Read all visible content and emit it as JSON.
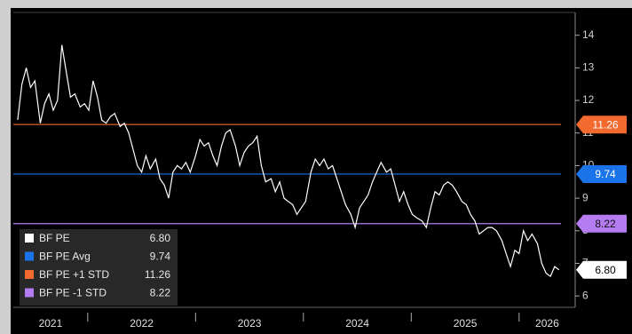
{
  "chart_data": {
    "type": "line",
    "x": [
      2021.35,
      2021.39,
      2021.43,
      2021.47,
      2021.51,
      2021.56,
      2021.6,
      2021.64,
      2021.68,
      2021.72,
      2021.76,
      2021.8,
      2021.84,
      2021.88,
      2021.93,
      2021.97,
      2022.01,
      2022.05,
      2022.09,
      2022.13,
      2022.17,
      2022.21,
      2022.25,
      2022.3,
      2022.34,
      2022.38,
      2022.42,
      2022.46,
      2022.5,
      2022.54,
      2022.58,
      2022.63,
      2022.67,
      2022.71,
      2022.75,
      2022.79,
      2022.83,
      2022.87,
      2022.91,
      2022.95,
      2023.0,
      2023.04,
      2023.08,
      2023.12,
      2023.16,
      2023.2,
      2023.24,
      2023.28,
      2023.32,
      2023.37,
      2023.41,
      2023.45,
      2023.49,
      2023.53,
      2023.57,
      2023.61,
      2023.65,
      2023.7,
      2023.74,
      2023.78,
      2023.82,
      2023.86,
      2023.9,
      2023.94,
      2023.98,
      2024.02,
      2024.07,
      2024.11,
      2024.15,
      2024.19,
      2024.23,
      2024.27,
      2024.31,
      2024.35,
      2024.39,
      2024.44,
      2024.48,
      2024.52,
      2024.56,
      2024.6,
      2024.64,
      2024.68,
      2024.72,
      2024.77,
      2024.81,
      2024.85,
      2024.89,
      2024.93,
      2024.97,
      2025.01,
      2025.05,
      2025.1,
      2025.14,
      2025.18,
      2025.22,
      2025.26,
      2025.3,
      2025.34,
      2025.38,
      2025.42,
      2025.47,
      2025.51,
      2025.55,
      2025.59,
      2025.63,
      2025.67,
      2025.71,
      2025.75,
      2025.79,
      2025.84,
      2025.88,
      2025.92,
      2025.96,
      2026.0,
      2026.04,
      2026.08,
      2026.12,
      2026.17,
      2026.21,
      2026.25,
      2026.29,
      2026.33,
      2026.37
    ],
    "series": [
      {
        "name": "BF PE",
        "color": "#ffffff",
        "value_label": "6.80",
        "values": [
          11.4,
          12.5,
          13.0,
          12.4,
          12.6,
          11.3,
          11.9,
          12.2,
          11.7,
          12.0,
          13.7,
          12.9,
          12.1,
          12.2,
          11.8,
          11.9,
          11.7,
          12.6,
          12.1,
          11.4,
          11.3,
          11.5,
          11.6,
          11.2,
          11.3,
          11.0,
          10.5,
          10.0,
          9.8,
          10.3,
          9.9,
          10.2,
          9.6,
          9.4,
          9.0,
          9.8,
          10.0,
          9.9,
          10.1,
          9.8,
          10.3,
          10.8,
          10.6,
          10.7,
          10.3,
          10.0,
          10.6,
          11.0,
          11.1,
          10.6,
          10.0,
          10.4,
          10.6,
          10.7,
          10.9,
          10.0,
          9.5,
          9.6,
          9.2,
          9.5,
          9.0,
          8.9,
          8.8,
          8.5,
          8.7,
          8.9,
          9.8,
          10.2,
          10.0,
          10.2,
          9.9,
          10.0,
          9.6,
          9.2,
          8.8,
          8.5,
          8.1,
          8.7,
          8.9,
          9.1,
          9.5,
          9.8,
          10.1,
          9.8,
          9.9,
          9.4,
          8.9,
          9.2,
          8.8,
          8.5,
          8.4,
          8.3,
          8.1,
          8.7,
          9.2,
          9.1,
          9.4,
          9.5,
          9.4,
          9.2,
          8.9,
          8.8,
          8.5,
          8.3,
          7.9,
          8.0,
          8.1,
          8.1,
          8.0,
          7.7,
          7.3,
          6.9,
          7.4,
          7.3,
          8.0,
          7.7,
          7.9,
          7.6,
          7.0,
          6.7,
          6.6,
          6.9,
          6.8
        ]
      },
      {
        "name": "BF PE Avg",
        "color": "#1a73e8",
        "value": 9.74
      },
      {
        "name": "BF PE +1 STD",
        "color": "#f26a2e",
        "value": 11.26
      },
      {
        "name": "BF PE -1 STD",
        "color": "#b57bf0",
        "value": 8.22
      }
    ],
    "xlim": [
      2021.31,
      2026.52
    ],
    "xticks": [
      2021,
      2022,
      2023,
      2024,
      2025,
      2026
    ],
    "ylim": [
      5.65,
      14.7
    ],
    "yticks": [
      6,
      7,
      8,
      9,
      10,
      11,
      12,
      13,
      14
    ],
    "legend": "lower-left"
  }
}
